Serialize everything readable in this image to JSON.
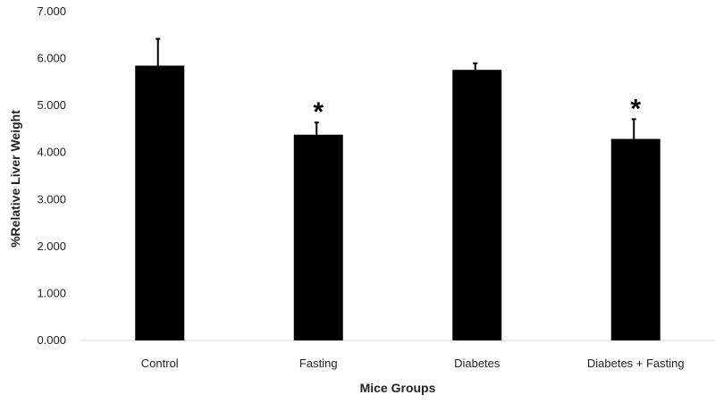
{
  "chart_data": {
    "type": "bar",
    "categories": [
      "Control",
      "Fasting",
      "Diabetes",
      "Diabetes + Fasting"
    ],
    "values": [
      5.85,
      4.38,
      5.76,
      4.29
    ],
    "error_upper": [
      0.57,
      0.26,
      0.14,
      0.42
    ],
    "annotations": [
      "",
      "*",
      "",
      "*"
    ],
    "xlabel": "Mice Groups",
    "ylabel": "%Relative Liver Weight",
    "ylim": [
      0,
      7
    ],
    "yticks": [
      "0.000",
      "1.000",
      "2.000",
      "3.000",
      "4.000",
      "5.000",
      "6.000",
      "7.000"
    ],
    "bar_color": "#000000",
    "grid": false
  }
}
